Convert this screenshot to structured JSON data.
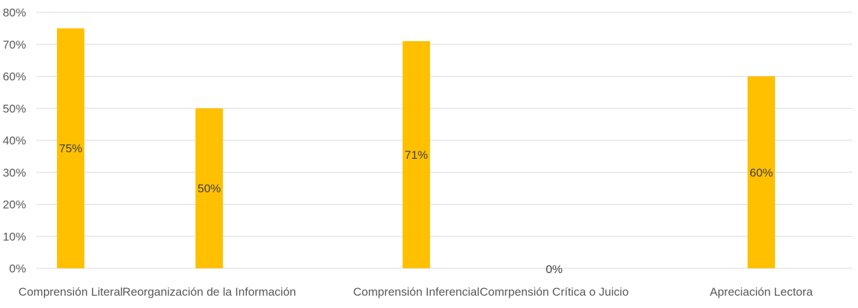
{
  "chart_data": {
    "type": "bar",
    "title": "",
    "xlabel": "",
    "ylabel": "",
    "categories": [
      "Comprensión Literal",
      "Reorganización de la Información",
      "Comprensión Inferencial",
      "Comrpensión Crítica o Juicio",
      "Apreciación Lectora"
    ],
    "values": [
      0.75,
      0.5,
      0.71,
      0.0,
      0.6
    ],
    "data_labels": [
      "75%",
      "50%",
      "71%",
      "0%",
      "60%"
    ],
    "ylim": [
      0,
      0.8
    ],
    "yticks": [
      0,
      0.1,
      0.2,
      0.3,
      0.4,
      0.5,
      0.6,
      0.7,
      0.8
    ],
    "ytick_labels": [
      "0%",
      "10%",
      "20%",
      "30%",
      "40%",
      "50%",
      "60%",
      "70%",
      "80%"
    ],
    "grid": true,
    "legend": "none",
    "colors": {
      "bar": "#FFC000",
      "grid": "#D9D9D9",
      "axis_text": "#595959",
      "data_label": "#404040"
    }
  }
}
